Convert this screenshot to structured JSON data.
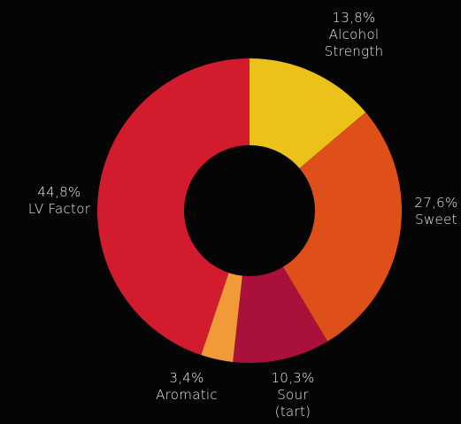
{
  "chart_data": {
    "type": "pie",
    "donut": true,
    "title": "",
    "slices": [
      {
        "label": "Alcohol Strength",
        "label_lines": [
          "13,8%",
          "Alcohol",
          "Strength"
        ],
        "value": 13.8,
        "color": "#ecc21a"
      },
      {
        "label": "Sweet",
        "label_lines": [
          "27,6%",
          "Sweet"
        ],
        "value": 27.6,
        "color": "#df4f19"
      },
      {
        "label": "Sour (tart)",
        "label_lines": [
          "10,3%",
          "Sour",
          "(tart)"
        ],
        "value": 10.3,
        "color": "#a9113a"
      },
      {
        "label": "Aromatic",
        "label_lines": [
          "3,4%",
          "Aromatic"
        ],
        "value": 3.4,
        "color": "#f09a3a"
      },
      {
        "label": "LV Factor",
        "label_lines": [
          "44,8%",
          "LV Factor"
        ],
        "value": 44.8,
        "color": "#d21c2e"
      }
    ]
  },
  "colors": {
    "background": "#050505",
    "label_text": "#e8e8e8"
  }
}
